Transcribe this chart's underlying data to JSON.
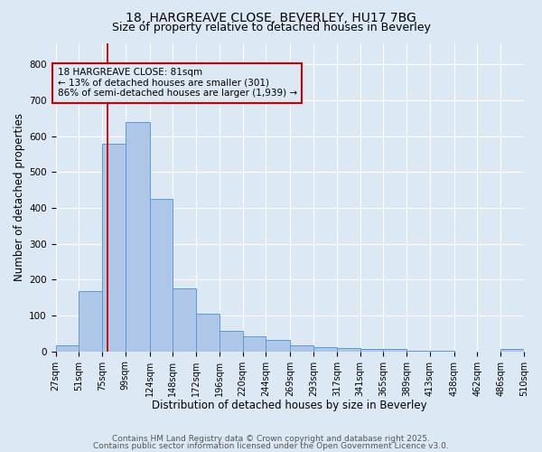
{
  "title_line1": "18, HARGREAVE CLOSE, BEVERLEY, HU17 7BG",
  "title_line2": "Size of property relative to detached houses in Beverley",
  "xlabel": "Distribution of detached houses by size in Beverley",
  "ylabel": "Number of detached properties",
  "bar_edges": [
    27,
    51,
    75,
    99,
    124,
    148,
    172,
    196,
    220,
    244,
    269,
    293,
    317,
    341,
    365,
    389,
    413,
    438,
    462,
    486,
    510
  ],
  "bar_heights": [
    18,
    168,
    580,
    640,
    425,
    175,
    105,
    57,
    42,
    32,
    16,
    11,
    9,
    8,
    6,
    3,
    2,
    0,
    0,
    6
  ],
  "bar_color": "#aec6e8",
  "bar_edge_color": "#5b9bd5",
  "property_size": 81,
  "red_line_color": "#cc0000",
  "annotation_text": "18 HARGREAVE CLOSE: 81sqm\n← 13% of detached houses are smaller (301)\n86% of semi-detached houses are larger (1,939) →",
  "ylim": [
    0,
    860
  ],
  "yticks": [
    0,
    100,
    200,
    300,
    400,
    500,
    600,
    700,
    800
  ],
  "background_color": "#dde8f5",
  "grid_color": "#ffffff",
  "footer_line1": "Contains HM Land Registry data © Crown copyright and database right 2025.",
  "footer_line2": "Contains public sector information licensed under the Open Government Licence v3.0.",
  "title_fontsize": 10,
  "subtitle_fontsize": 9,
  "axis_label_fontsize": 8.5,
  "tick_fontsize": 7,
  "annotation_fontsize": 7.5,
  "footer_fontsize": 6.5
}
